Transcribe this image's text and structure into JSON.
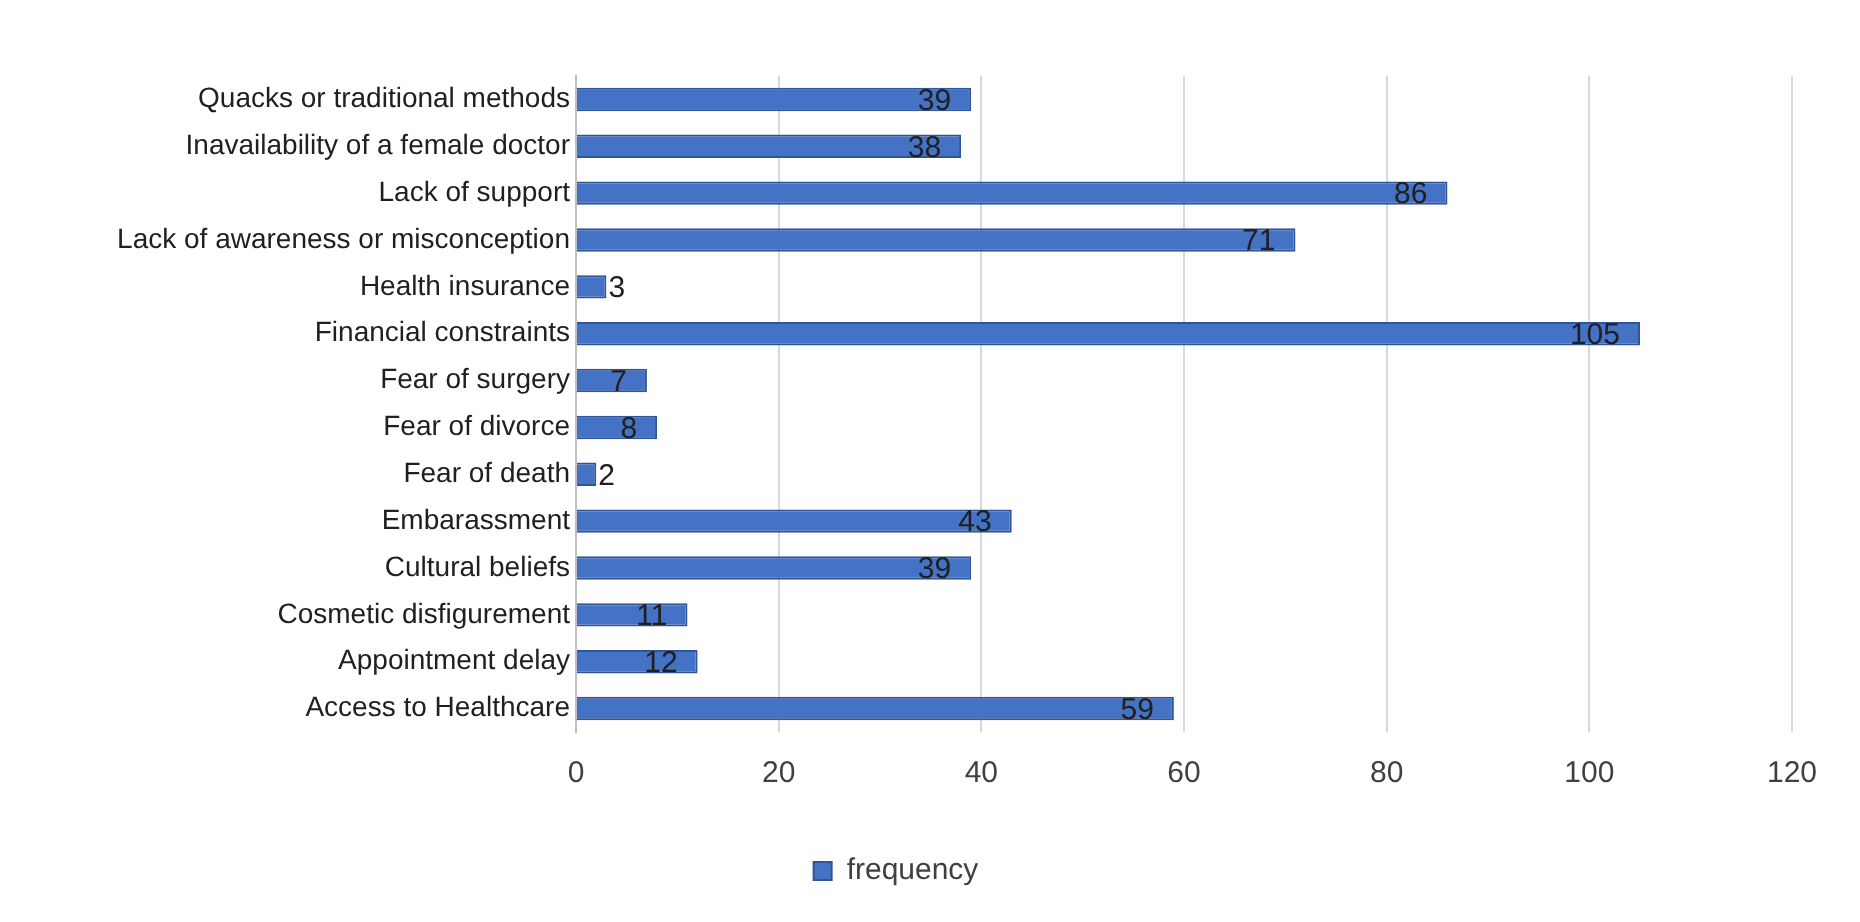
{
  "chart_data": {
    "type": "bar",
    "orientation": "horizontal",
    "categories": [
      "Quacks or traditional methods",
      "Inavailability of a female doctor",
      "Lack of support",
      "Lack of awareness or misconception",
      "Health insurance",
      "Financial constraints",
      "Fear of surgery",
      "Fear of divorce",
      "Fear of death",
      "Embarassment",
      "Cultural beliefs",
      "Cosmetic disfigurement",
      "Appointment delay",
      "Access to Healthcare"
    ],
    "series": [
      {
        "name": "frequency",
        "color": "#4472c4",
        "values": [
          39,
          38,
          86,
          71,
          3,
          105,
          7,
          8,
          2,
          43,
          39,
          11,
          12,
          59
        ]
      }
    ],
    "xlim": [
      0,
      120
    ],
    "xticks": [
      0,
      20,
      40,
      60,
      80,
      100,
      120
    ],
    "grid": "x",
    "legend": "bottom",
    "data_labels": true
  }
}
